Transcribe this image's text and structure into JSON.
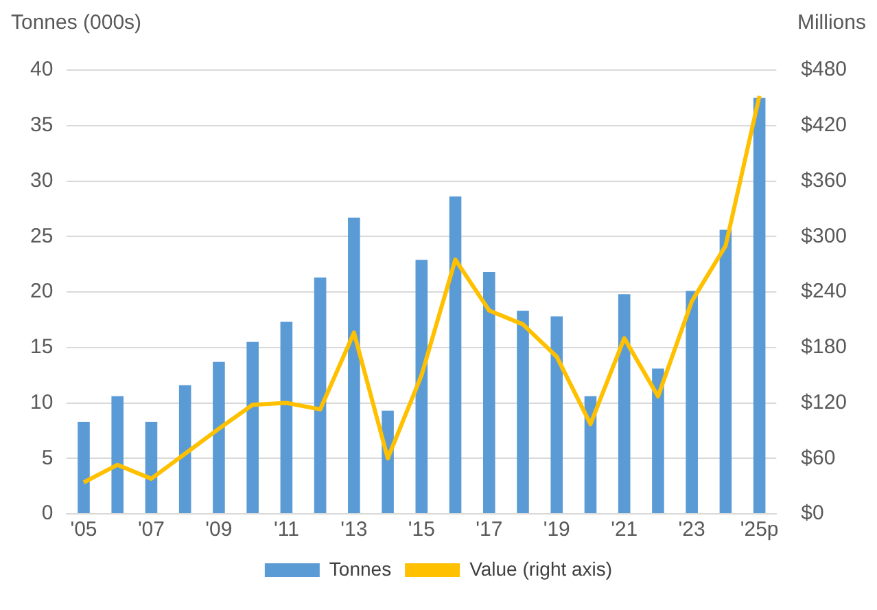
{
  "chart_data": {
    "type": "bar",
    "ylabel": "Tonnes (000s)",
    "y2label": "Millions",
    "categories": [
      "'05",
      null,
      "'07",
      null,
      "'09",
      null,
      "'11",
      null,
      "'13",
      null,
      "'15",
      null,
      "'17",
      null,
      "'19",
      null,
      "'21",
      null,
      "'23",
      null,
      "'25p"
    ],
    "series": [
      {
        "name": "Tonnes",
        "color": "#5b9bd5",
        "values": [
          8.3,
          10.6,
          8.3,
          11.6,
          13.7,
          15.5,
          17.3,
          21.3,
          26.7,
          9.3,
          22.9,
          28.6,
          21.8,
          18.3,
          17.8,
          10.6,
          19.8,
          13.1,
          20.1,
          25.6,
          37.5
        ]
      },
      {
        "name": "Value (right axis)",
        "type": "line",
        "axis": "y2",
        "color": "#ffc000",
        "values": [
          34,
          53,
          38,
          65,
          92,
          118,
          120,
          113,
          196,
          60,
          150,
          275,
          220,
          205,
          170,
          97,
          190,
          127,
          230,
          290,
          452
        ]
      }
    ],
    "ylim": [
      0,
      40
    ],
    "yticks": [
      0,
      5,
      10,
      15,
      20,
      25,
      30,
      35,
      40
    ],
    "y2lim": [
      0,
      480
    ],
    "y2ticks": [
      {
        "value": 0,
        "label": "$0"
      },
      {
        "value": 60,
        "label": "$60"
      },
      {
        "value": 120,
        "label": "$120"
      },
      {
        "value": 180,
        "label": "$180"
      },
      {
        "value": 240,
        "label": "$240"
      },
      {
        "value": 300,
        "label": "$300"
      },
      {
        "value": 360,
        "label": "$360"
      },
      {
        "value": 420,
        "label": "$420"
      },
      {
        "value": 480,
        "label": "$480"
      }
    ],
    "grid": "y",
    "legend": "bottom",
    "marker": "none",
    "line_style": "solid"
  }
}
